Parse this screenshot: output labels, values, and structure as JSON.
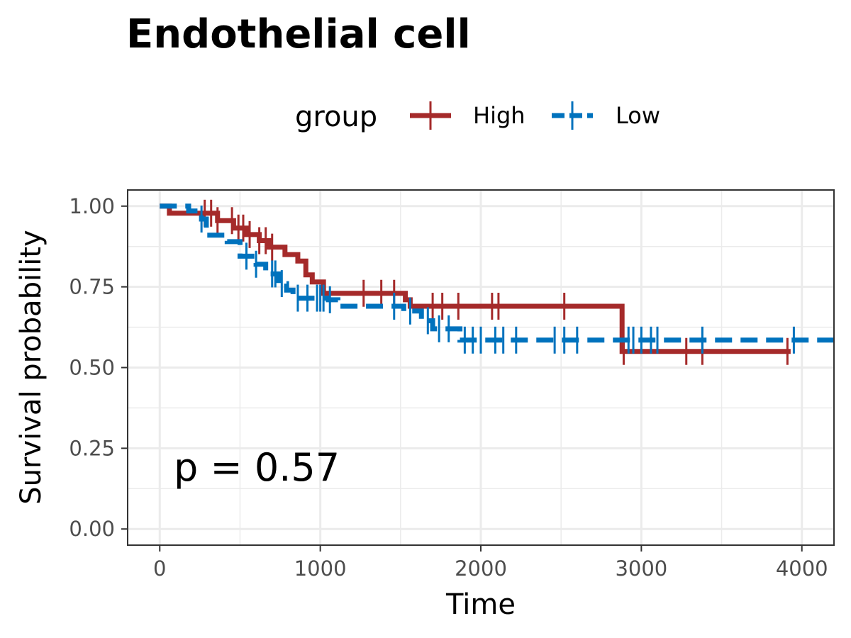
{
  "chart_data": {
    "type": "line",
    "subtype": "kaplan-meier survival curve",
    "title": "Endothelial cell",
    "xlabel": "Time",
    "ylabel": "Survival probability",
    "xlim": [
      -200,
      4200
    ],
    "ylim": [
      -0.05,
      1.05
    ],
    "x_ticks": [
      0,
      1000,
      2000,
      3000,
      4000
    ],
    "x_tick_labels": [
      "0",
      "1000",
      "2000",
      "3000",
      "4000"
    ],
    "y_ticks": [
      0,
      0.25,
      0.5,
      0.75,
      1.0
    ],
    "y_tick_labels": [
      "0.00",
      "0.25",
      "0.50",
      "0.75",
      "1.00"
    ],
    "grid": true,
    "legend": {
      "title": "group",
      "position": "top"
    },
    "annotation": "p = 0.57",
    "series": [
      {
        "name": "High",
        "color": "#A52A2A",
        "dash": false,
        "steps": [
          [
            0,
            1.0
          ],
          [
            60,
            0.978
          ],
          [
            300,
            0.978
          ],
          [
            360,
            0.955
          ],
          [
            460,
            0.932
          ],
          [
            540,
            0.912
          ],
          [
            620,
            0.893
          ],
          [
            680,
            0.873
          ],
          [
            780,
            0.85
          ],
          [
            860,
            0.83
          ],
          [
            910,
            0.787
          ],
          [
            950,
            0.765
          ],
          [
            1020,
            0.73
          ],
          [
            1530,
            0.71
          ],
          [
            1560,
            0.69
          ],
          [
            2880,
            0.55
          ],
          [
            3930,
            0.55
          ]
        ],
        "censor_x": [
          280,
          320,
          360,
          450,
          490,
          520,
          560,
          620,
          660,
          700,
          1270,
          1380,
          1460,
          1700,
          1760,
          1860,
          2070,
          2110,
          2520,
          2890,
          3280,
          3380,
          3910
        ]
      },
      {
        "name": "Low",
        "color": "#0072BD",
        "dash": true,
        "steps": [
          [
            0,
            1.0
          ],
          [
            180,
            0.985
          ],
          [
            260,
            0.96
          ],
          [
            290,
            0.91
          ],
          [
            420,
            0.89
          ],
          [
            500,
            0.845
          ],
          [
            600,
            0.82
          ],
          [
            660,
            0.79
          ],
          [
            740,
            0.76
          ],
          [
            790,
            0.74
          ],
          [
            830,
            0.715
          ],
          [
            1050,
            0.71
          ],
          [
            1110,
            0.69
          ],
          [
            1520,
            0.675
          ],
          [
            1630,
            0.645
          ],
          [
            1700,
            0.62
          ],
          [
            1870,
            0.585
          ],
          [
            2600,
            0.585
          ],
          [
            2900,
            0.585
          ],
          [
            4200,
            0.585
          ]
        ],
        "censor_x": [
          260,
          540,
          600,
          700,
          720,
          760,
          860,
          920,
          980,
          1000,
          1020,
          1060,
          1460,
          1560,
          1670,
          1740,
          1800,
          1900,
          1950,
          2000,
          2090,
          2140,
          2220,
          2460,
          2520,
          2600,
          2920,
          2950,
          3000,
          3060,
          3100,
          3380,
          3950
        ]
      }
    ]
  }
}
